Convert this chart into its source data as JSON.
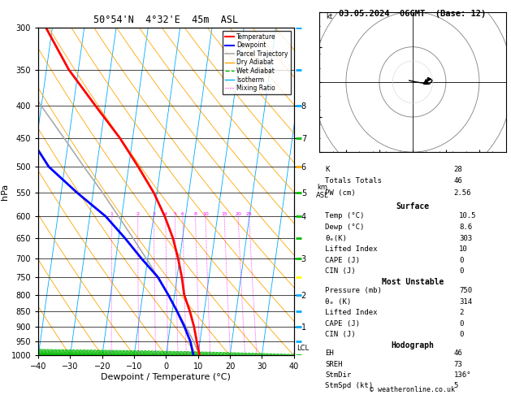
{
  "title_left": "50°54'N  4°32'E  45m  ASL",
  "title_right": "03.05.2024  06GMT  (Base: 12)",
  "xlabel": "Dewpoint / Temperature (°C)",
  "ylabel_left": "hPa",
  "credit": "© weatheronline.co.uk",
  "xlim": [
    -40,
    40
  ],
  "pressure_levels": [
    300,
    350,
    400,
    450,
    500,
    550,
    600,
    650,
    700,
    750,
    800,
    850,
    900,
    950,
    1000
  ],
  "mixing_ratio_values": [
    1,
    2,
    3,
    4,
    5,
    6,
    8,
    10,
    15,
    20,
    25
  ],
  "temp_profile_p": [
    1000,
    950,
    900,
    850,
    800,
    750,
    700,
    650,
    600,
    550,
    500,
    450,
    400,
    350,
    300
  ],
  "temp_profile_t": [
    10.5,
    9.0,
    7.5,
    5.5,
    3.0,
    1.5,
    -0.5,
    -3.0,
    -6.5,
    -11.0,
    -17.0,
    -24.0,
    -33.0,
    -43.0,
    -52.0
  ],
  "dewp_profile_p": [
    1000,
    950,
    900,
    850,
    800,
    750,
    700,
    650,
    600,
    550,
    500,
    450,
    400,
    350,
    300
  ],
  "dewp_profile_t": [
    8.6,
    7.0,
    4.5,
    1.5,
    -2.0,
    -6.0,
    -12.0,
    -18.0,
    -25.0,
    -35.0,
    -45.0,
    -52.0,
    -58.0,
    -63.0,
    -70.0
  ],
  "parcel_profile_p": [
    1000,
    950,
    900,
    850,
    800,
    750,
    700,
    650,
    600,
    550,
    500,
    450,
    400,
    350,
    300
  ],
  "parcel_profile_t": [
    10.5,
    8.0,
    5.0,
    1.5,
    -2.0,
    -6.0,
    -10.5,
    -15.5,
    -21.0,
    -27.0,
    -34.0,
    -41.5,
    -50.0,
    -59.0,
    -69.0
  ],
  "skew_factor": 27.5,
  "color_temp": "#ff0000",
  "color_dewp": "#0000ff",
  "color_parcel": "#aaaaaa",
  "color_dry_adiabat": "#ffa500",
  "color_wet_adiabat": "#00bb00",
  "color_isotherm": "#00aaff",
  "color_mixing": "#ff00ff",
  "color_bg": "#ffffff",
  "lw_temp": 2.0,
  "lw_dewp": 2.0,
  "lw_parcel": 1.2,
  "lw_bg_lines": 0.6,
  "lcl_pressure": 975,
  "stats_k": 28,
  "stats_totals": 46,
  "stats_pw": "2.56",
  "surf_temp": "10.5",
  "surf_dewp": "8.6",
  "surf_thetae": "303",
  "surf_li": "10",
  "surf_cape": "0",
  "surf_cin": "0",
  "mu_pressure": "750",
  "mu_thetae": "314",
  "mu_li": "2",
  "mu_cape": "0",
  "mu_cin": "0",
  "hodo_eh": "46",
  "hodo_sreh": "73",
  "hodo_stmdir": "136°",
  "hodo_stmspd": "5",
  "km_ticks": [
    1,
    2,
    3,
    4,
    5,
    6,
    7,
    8
  ],
  "km_pressures": [
    900,
    800,
    700,
    600,
    550,
    500,
    450,
    400
  ],
  "wind_colors_p": [
    1000,
    950,
    900,
    850,
    750,
    700,
    550,
    500,
    400,
    300
  ],
  "wind_colors": [
    "#00aaff",
    "#00aaff",
    "#00aaff",
    "#00aaff",
    "#ffff00",
    "#00bb00",
    "#00bb00",
    "#ffa500",
    "#00aaff",
    "#00bb00"
  ]
}
